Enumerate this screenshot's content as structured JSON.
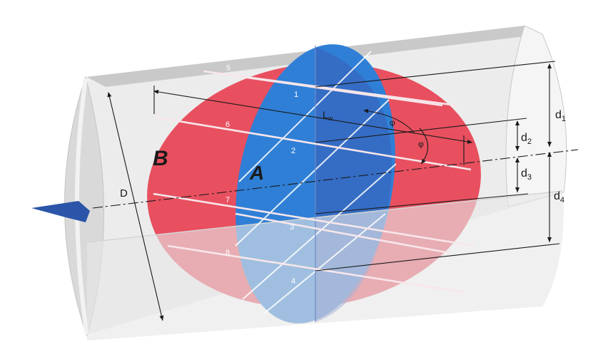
{
  "labels": {
    "region_b": "B",
    "region_a": "A",
    "diameter": "D",
    "path_length_main": "L",
    "path_length_sub": "w",
    "angle_1": "φ",
    "angle_2": "φ",
    "d1_main": "d",
    "d1_sub": "1",
    "d2_main": "d",
    "d2_sub": "2",
    "d3_main": "d",
    "d3_sub": "3",
    "d4_main": "d",
    "d4_sub": "4"
  },
  "paths": {
    "p1": "1",
    "p2": "2",
    "p3": "3",
    "p4": "4",
    "p5": "5",
    "p6": "6",
    "p7": "7",
    "p8": "8"
  },
  "colors": {
    "pipe": "#e4e4e4",
    "pipe_edge": "#bdbdbd",
    "ellipse_b": "#e8505f",
    "ellipse_a": "#2f7fd6",
    "beam": "#f7e6ea",
    "flow_arrow": "#2a55a8"
  },
  "icons": {
    "flow": "flow-arrow-icon"
  }
}
